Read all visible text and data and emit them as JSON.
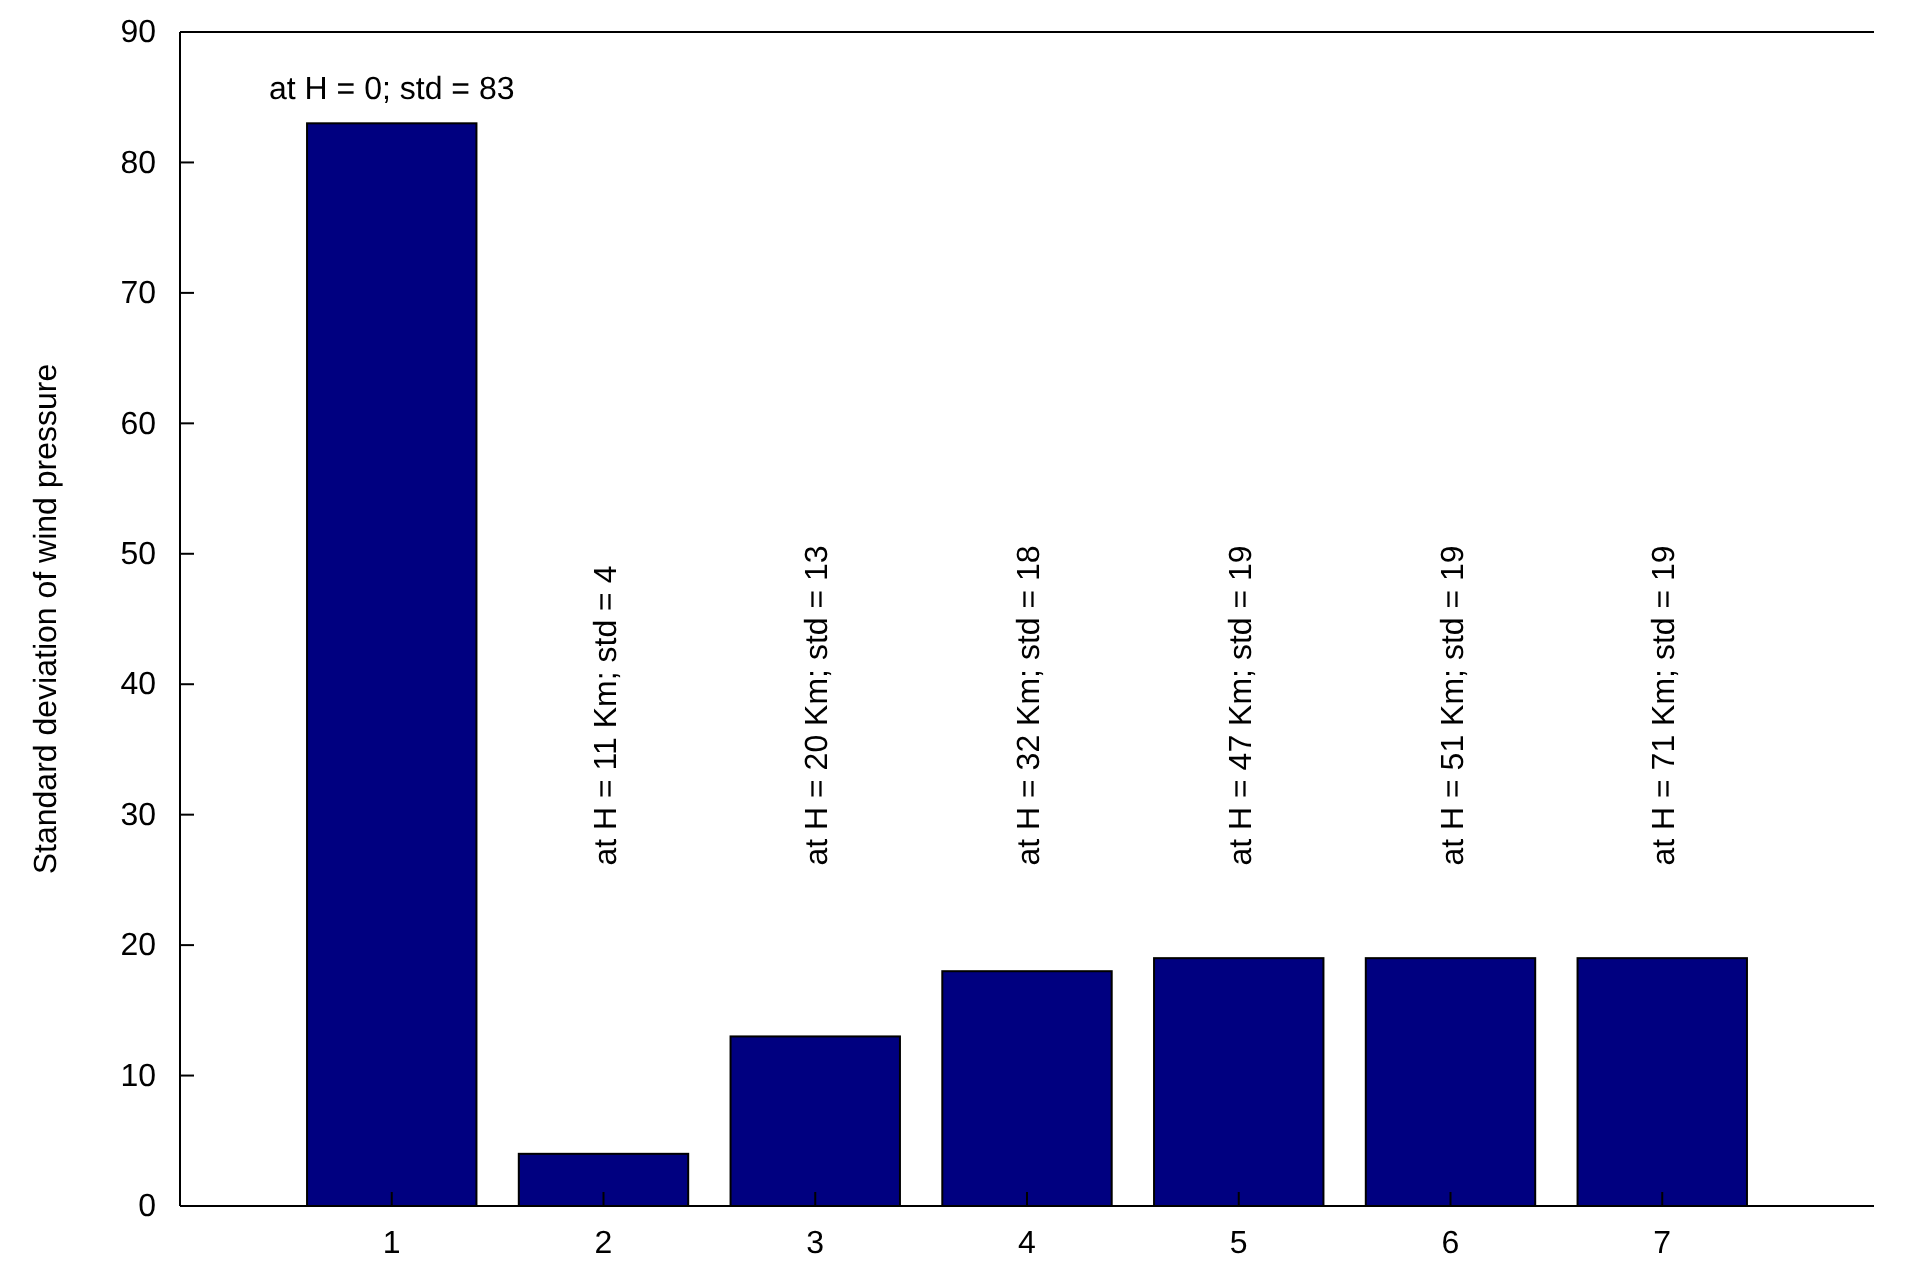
{
  "chart_data": {
    "type": "bar",
    "ylabel": "Standard deviation of wind pressure",
    "categories": [
      "1",
      "2",
      "3",
      "4",
      "5",
      "6",
      "7"
    ],
    "values": [
      83,
      4,
      13,
      18,
      19,
      19,
      19
    ],
    "color": "#000080",
    "ylim": [
      0,
      90
    ],
    "yticks": [
      0,
      10,
      20,
      30,
      40,
      50,
      60,
      70,
      80,
      90
    ],
    "grid": false,
    "annotations": [
      "at H = 0; std = 83",
      "at H = 11 Km; std = 4",
      "at H = 20 Km; std = 13",
      "at H = 32 Km; std = 18",
      "at H = 47 Km; std = 19",
      "at H = 51 Km; std = 19",
      "at H = 71 Km; std = 19"
    ]
  }
}
